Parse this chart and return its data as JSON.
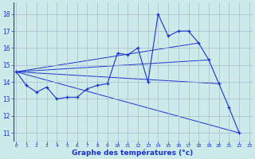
{
  "xlabel": "Graphe des températures (°c)",
  "background_color": "#cceaea",
  "grid_color": "#aabbcc",
  "line_color": "#1a33cc",
  "x_ticks": [
    0,
    1,
    2,
    3,
    4,
    5,
    6,
    7,
    8,
    9,
    10,
    11,
    12,
    13,
    14,
    15,
    16,
    17,
    18,
    19,
    20,
    21,
    22,
    23
  ],
  "y_ticks": [
    11,
    12,
    13,
    14,
    15,
    16,
    17,
    18
  ],
  "ylim": [
    10.5,
    18.7
  ],
  "xlim": [
    -0.3,
    23.3
  ],
  "temp_main": [
    14.6,
    13.8,
    13.4,
    13.7,
    13.0,
    13.1,
    13.1,
    13.6,
    13.8,
    13.9,
    15.7,
    15.6,
    16.0,
    14.0,
    18.0,
    16.7,
    17.0,
    17.0,
    16.3,
    15.3,
    13.9,
    12.5,
    11.0,
    null
  ],
  "trend1_x": [
    0,
    19
  ],
  "trend1_y": [
    14.6,
    15.3
  ],
  "trend2_x": [
    0,
    20
  ],
  "trend2_y": [
    14.6,
    13.9
  ],
  "trend3_x": [
    0,
    22
  ],
  "trend3_y": [
    14.6,
    11.0
  ],
  "trend4_x": [
    0,
    18
  ],
  "trend4_y": [
    14.6,
    16.3
  ]
}
